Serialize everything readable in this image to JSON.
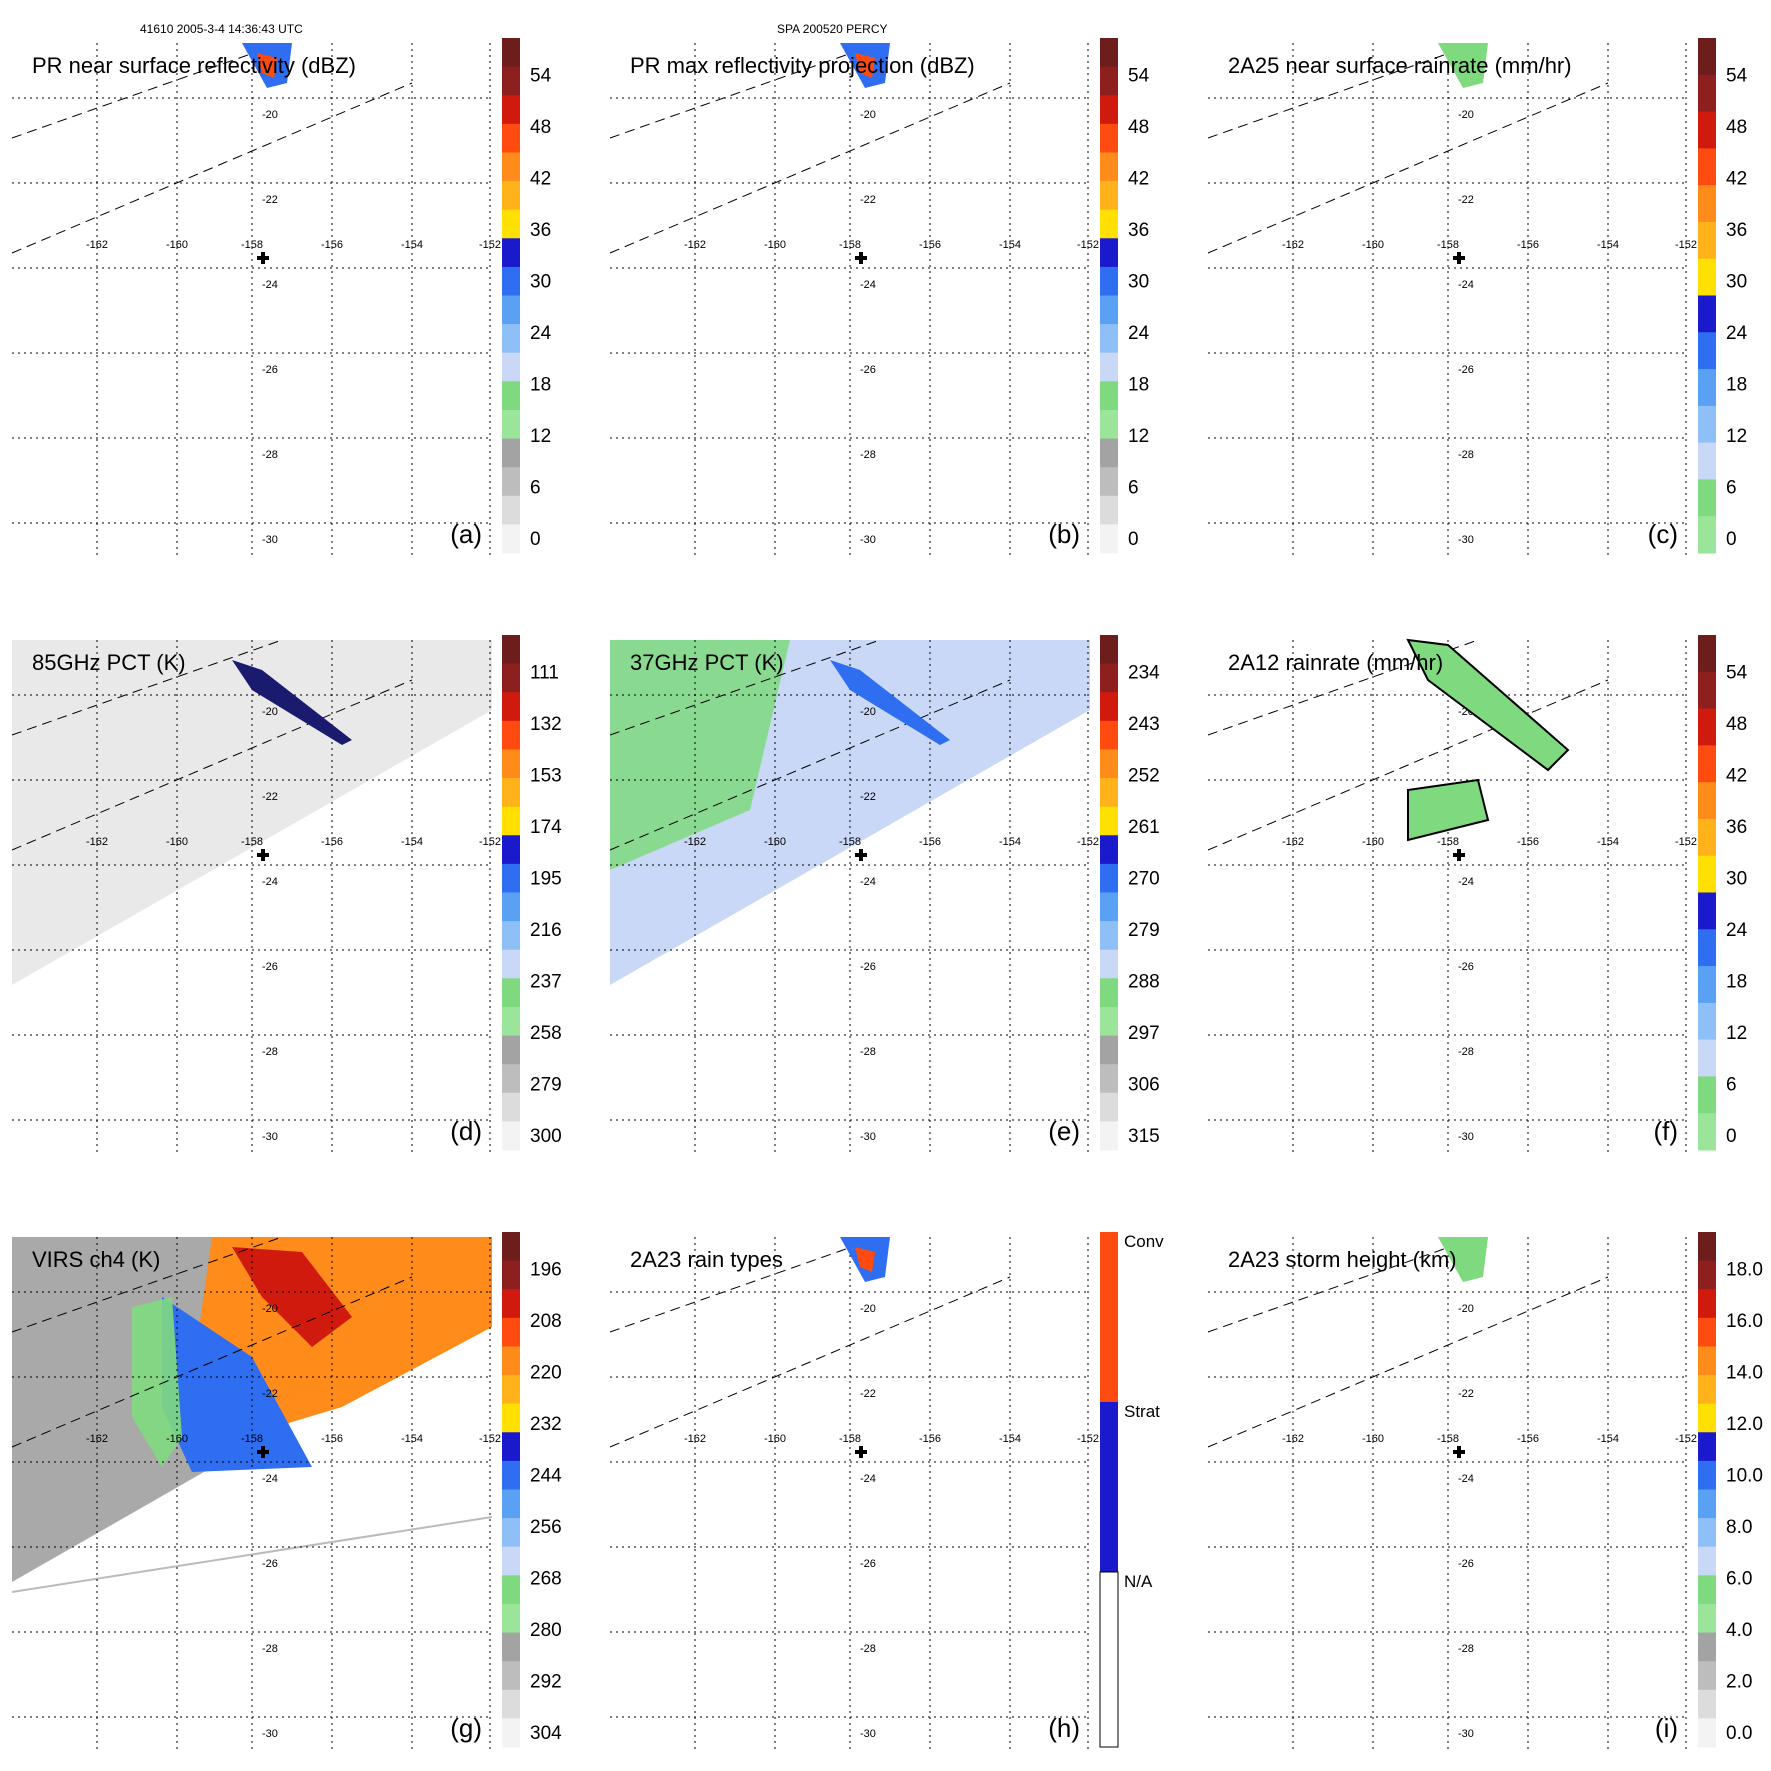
{
  "header": {
    "left": "41610 2005-3-4 14:36:43 UTC",
    "center": "SPA 200520 PERCY"
  },
  "grid_labels": {
    "lon": [
      "-162",
      "-160",
      "-158",
      "-156",
      "-154",
      "-152"
    ],
    "lat": [
      "-20",
      "-22",
      "-24",
      "-26",
      "-28",
      "-30"
    ]
  },
  "colors": {
    "dark_red": "#6e1d1d",
    "red": "#d11a0e",
    "orange_red": "#ff4a10",
    "orange": "#ff8c1a",
    "yellow": "#ffe000",
    "dark_blue": "#1a1acc",
    "blue": "#2f6ef0",
    "light_blue": "#8fbff7",
    "pale_blue": "#c9d8f7",
    "green": "#7fd97f",
    "gray": "#a3a3a3",
    "light_gray": "#dcdcdc"
  },
  "panels": [
    {
      "id": "a",
      "title": "PR near surface reflectivity (dBZ)",
      "letter": "(a)",
      "colorbar": [
        "54",
        "48",
        "42",
        "36",
        "30",
        "24",
        "18",
        "12",
        "6",
        "0"
      ]
    },
    {
      "id": "b",
      "title": "PR max reflectivity projection (dBZ)",
      "letter": "(b)",
      "colorbar": [
        "54",
        "48",
        "42",
        "36",
        "30",
        "24",
        "18",
        "12",
        "6",
        "0"
      ]
    },
    {
      "id": "c",
      "title": "2A25 near surface rainrate (mm/hr)",
      "letter": "(c)",
      "colorbar": [
        "54",
        "48",
        "42",
        "36",
        "30",
        "24",
        "18",
        "12",
        "6",
        "0"
      ]
    },
    {
      "id": "d",
      "title": "85GHz PCT (K)",
      "letter": "(d)",
      "colorbar": [
        "111",
        "132",
        "153",
        "174",
        "195",
        "216",
        "237",
        "258",
        "279",
        "300"
      ]
    },
    {
      "id": "e",
      "title": "37GHz PCT (K)",
      "letter": "(e)",
      "colorbar": [
        "234",
        "243",
        "252",
        "261",
        "270",
        "279",
        "288",
        "297",
        "306",
        "315"
      ]
    },
    {
      "id": "f",
      "title": "2A12 rainrate (mm/hr)",
      "letter": "(f)",
      "colorbar": [
        "54",
        "48",
        "42",
        "36",
        "30",
        "24",
        "18",
        "12",
        "6",
        "0"
      ]
    },
    {
      "id": "g",
      "title": "VIRS ch4 (K)",
      "letter": "(g)",
      "colorbar": [
        "196",
        "208",
        "220",
        "232",
        "244",
        "256",
        "268",
        "280",
        "292",
        "304"
      ]
    },
    {
      "id": "h",
      "title": "2A23 rain types",
      "letter": "(h)",
      "colorbar": [
        "Conv",
        "Strat",
        "N/A"
      ]
    },
    {
      "id": "i",
      "title": "2A23 storm height (km)",
      "letter": "(i)",
      "colorbar": [
        "18.0",
        "16.0",
        "14.0",
        "12.0",
        "10.0",
        "8.0",
        "6.0",
        "4.0",
        "2.0",
        "0.0"
      ]
    }
  ]
}
